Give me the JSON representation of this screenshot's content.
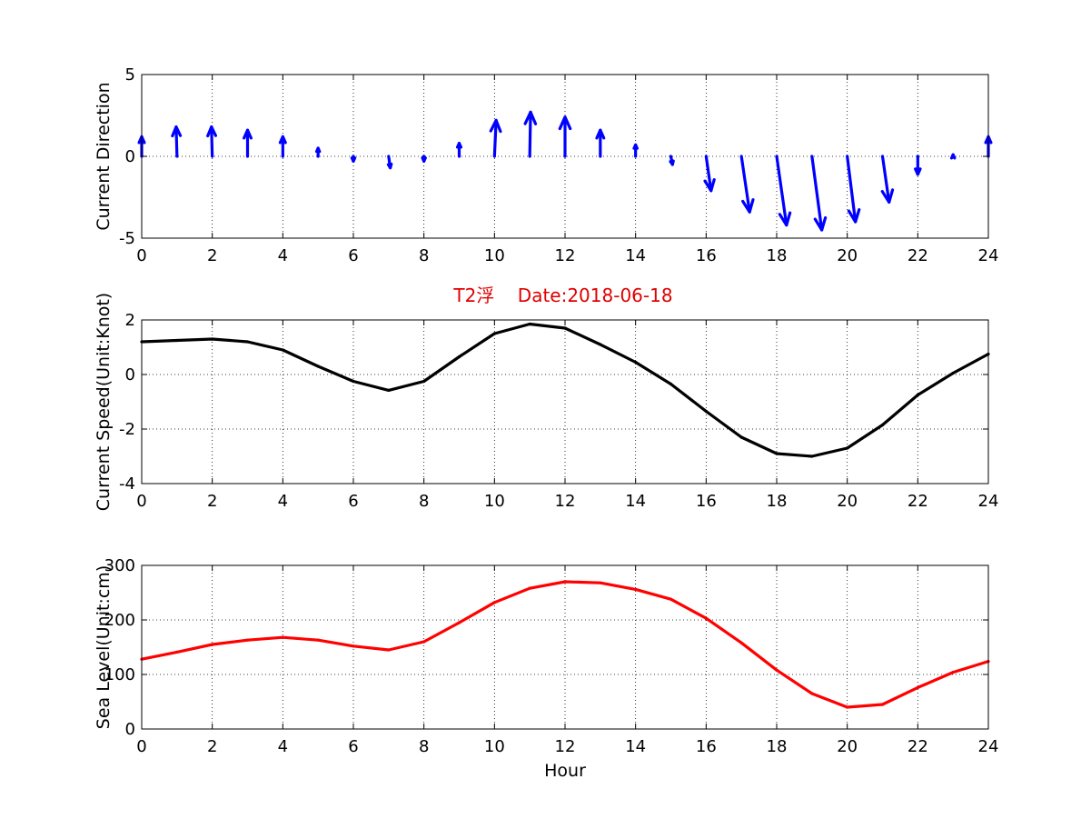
{
  "figure": {
    "title": "T2浮    Date:2018-06-18"
  },
  "chart_data": [
    {
      "type": "quiver",
      "ylabel": "Current Direction",
      "xlabel": "",
      "xlim": [
        0,
        24
      ],
      "ylim": [
        -5,
        5
      ],
      "xticks": [
        0,
        2,
        4,
        6,
        8,
        10,
        12,
        14,
        16,
        18,
        20,
        22,
        24
      ],
      "yticks": [
        -5,
        0,
        5
      ],
      "grid": true,
      "color": "#0000ff",
      "series": [
        {
          "x": [
            0,
            1,
            2,
            3,
            4,
            5,
            6,
            7,
            8,
            9,
            10,
            11,
            12,
            13,
            14,
            15,
            16,
            17,
            18,
            19,
            20,
            21,
            22,
            23,
            24
          ],
          "u": [
            0.0,
            -0.05,
            -0.05,
            0.0,
            0.0,
            0.0,
            0.0,
            0.1,
            0.0,
            0.0,
            0.1,
            0.05,
            0.0,
            0.0,
            0.0,
            0.1,
            0.3,
            0.5,
            0.6,
            0.6,
            0.5,
            0.4,
            0.0,
            0.0,
            0.0
          ],
          "v": [
            1.2,
            1.8,
            1.8,
            1.6,
            1.2,
            0.5,
            -0.3,
            -0.7,
            -0.3,
            0.8,
            2.2,
            2.7,
            2.4,
            1.6,
            0.7,
            -0.5,
            -2.1,
            -3.4,
            -4.2,
            -4.5,
            -4.0,
            -2.8,
            -1.1,
            0.1,
            1.2
          ]
        }
      ]
    },
    {
      "type": "line",
      "ylabel": "Current Speed(Unit:Knot)",
      "xlabel": "",
      "xlim": [
        0,
        24
      ],
      "ylim": [
        -4,
        2
      ],
      "xticks": [
        0,
        2,
        4,
        6,
        8,
        10,
        12,
        14,
        16,
        18,
        20,
        22,
        24
      ],
      "yticks": [
        -4,
        -2,
        0,
        2
      ],
      "grid": true,
      "series": [
        {
          "color": "#000000",
          "x": [
            0,
            1,
            2,
            3,
            4,
            5,
            6,
            7,
            8,
            9,
            10,
            11,
            12,
            13,
            14,
            15,
            16,
            17,
            18,
            19,
            20,
            21,
            22,
            23,
            24
          ],
          "values": [
            1.2,
            1.25,
            1.3,
            1.2,
            0.9,
            0.3,
            -0.25,
            -0.58,
            -0.25,
            0.65,
            1.5,
            1.85,
            1.7,
            1.1,
            0.45,
            -0.35,
            -1.35,
            -2.3,
            -2.9,
            -3.0,
            -2.7,
            -1.85,
            -0.75,
            0.05,
            0.75
          ]
        }
      ]
    },
    {
      "type": "line",
      "ylabel": "Sea Level(Unit:cm)",
      "xlabel": "Hour",
      "xlim": [
        0,
        24
      ],
      "ylim": [
        0,
        300
      ],
      "xticks": [
        0,
        2,
        4,
        6,
        8,
        10,
        12,
        14,
        16,
        18,
        20,
        22,
        24
      ],
      "yticks": [
        0,
        100,
        200,
        300
      ],
      "grid": true,
      "series": [
        {
          "color": "#ff0000",
          "x": [
            0,
            1,
            2,
            3,
            4,
            5,
            6,
            7,
            8,
            9,
            10,
            11,
            12,
            13,
            14,
            15,
            16,
            17,
            18,
            19,
            20,
            21,
            22,
            23,
            24
          ],
          "values": [
            128,
            141,
            155,
            163,
            168,
            163,
            152,
            145,
            160,
            195,
            232,
            258,
            270,
            268,
            256,
            238,
            203,
            158,
            108,
            65,
            40,
            45,
            76,
            104,
            124
          ]
        }
      ]
    }
  ]
}
